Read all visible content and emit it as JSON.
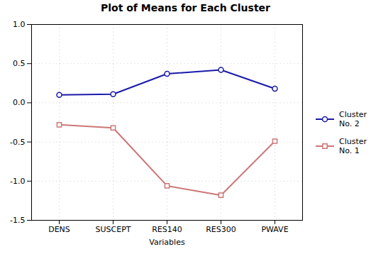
{
  "chart_data": {
    "type": "line",
    "title": "Plot of Means for Each Cluster",
    "xlabel": "Variables",
    "categories": [
      "DENS",
      "SUSCEPT",
      "RES140",
      "RES300",
      "PWAVE"
    ],
    "series": [
      {
        "name": "Cluster\nNo. 2",
        "color": "#1a1aaa",
        "marker": "circle",
        "line_style": "solid",
        "values": [
          0.1,
          0.11,
          0.37,
          0.42,
          0.18
        ]
      },
      {
        "name": "Cluster\nNo. 1",
        "color": "#cc7777",
        "marker": "square",
        "line_style": "solid",
        "values": [
          -0.28,
          -0.32,
          -1.06,
          -1.18,
          -0.49
        ]
      }
    ],
    "ylim": [
      -1.5,
      1.0
    ],
    "yticks": [
      -1.5,
      {
        "value": -1.0,
        "label": "-1.0"
      },
      -0.5,
      {
        "value": 0.0,
        "label": "0.0"
      },
      0.5,
      {
        "value": 1.0,
        "label": "1.0"
      }
    ],
    "grid": true,
    "legend": "right"
  }
}
